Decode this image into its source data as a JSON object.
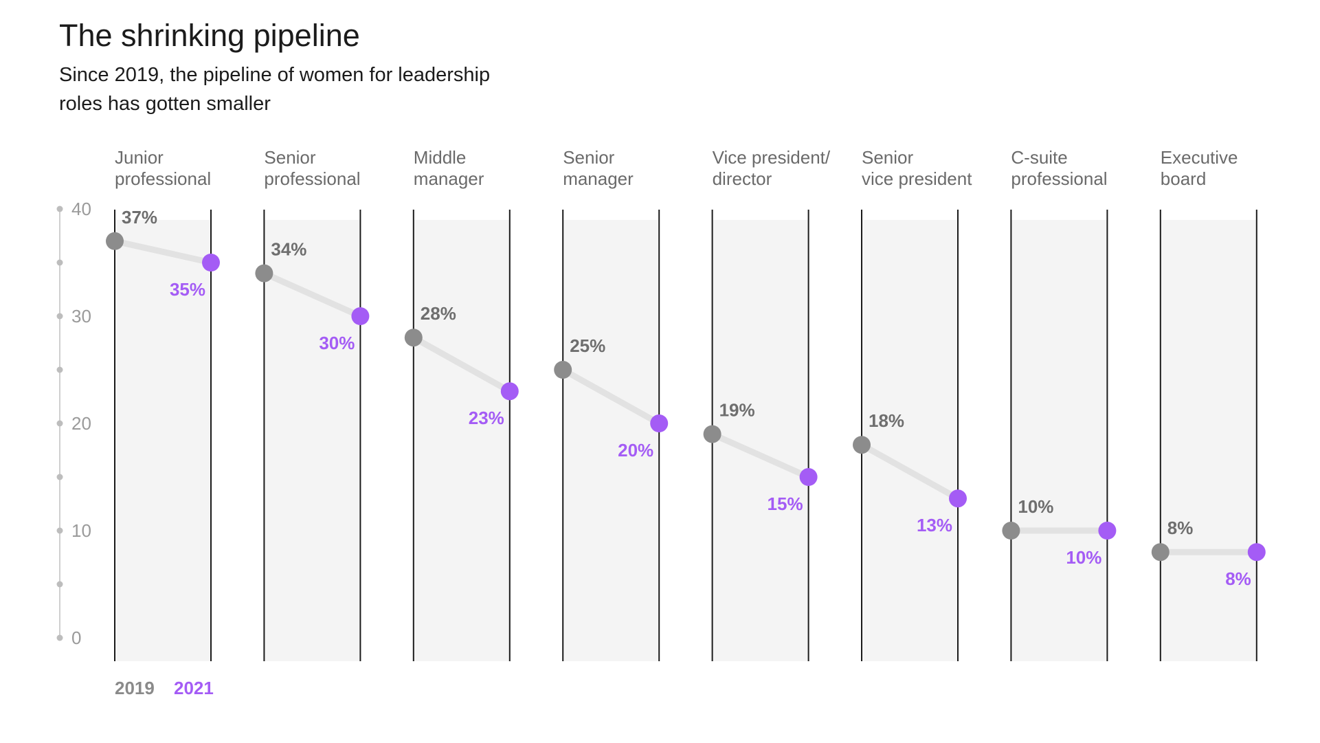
{
  "header": {
    "title": "The shrinking pipeline",
    "subtitle": "Since 2019, the pipeline of women for leadership roles has gotten smaller"
  },
  "colors": {
    "color_2019": "#8c8c8c",
    "color_2021": "#a45cf5",
    "label_2019": "#6e6e6e",
    "label_2021": "#a45cf5",
    "connector": "#e2e2e2",
    "panel": "#f4f4f4"
  },
  "chart_data": {
    "type": "line",
    "title": "The shrinking pipeline",
    "subtitle": "Since 2019, the pipeline of women for leadership roles has gotten smaller",
    "ylim": [
      0,
      40
    ],
    "y_ticks": [
      "0",
      "10",
      "20",
      "30",
      "40"
    ],
    "grid": false,
    "legend_placement": "bottom-left",
    "categories": [
      [
        "Junior",
        "professional"
      ],
      [
        "Senior",
        "professional"
      ],
      [
        "Middle",
        "manager"
      ],
      [
        "Senior",
        "manager"
      ],
      [
        "Vice president/",
        "director"
      ],
      [
        "Senior",
        "vice president"
      ],
      [
        "C-suite",
        "professional"
      ],
      [
        "Executive",
        "board"
      ]
    ],
    "series": [
      {
        "name": "2019",
        "values": [
          37,
          34,
          28,
          25,
          19,
          18,
          10,
          8
        ],
        "labels": [
          "37%",
          "34%",
          "28%",
          "25%",
          "19%",
          "18%",
          "10%",
          "8%"
        ]
      },
      {
        "name": "2021",
        "values": [
          35,
          30,
          23,
          20,
          15,
          13,
          10,
          8
        ],
        "labels": [
          "35%",
          "30%",
          "23%",
          "20%",
          "15%",
          "13%",
          "10%",
          "8%"
        ]
      }
    ]
  }
}
